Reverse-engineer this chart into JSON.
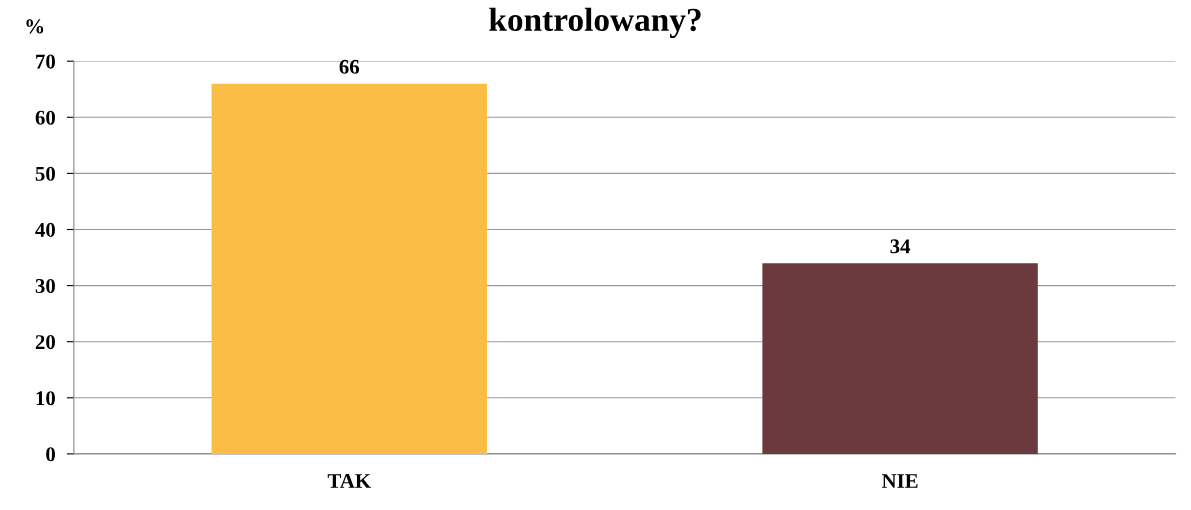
{
  "chart_data": {
    "type": "bar",
    "title": "kontrolowany?",
    "ylabel": "%",
    "categories": [
      "TAK",
      "NIE"
    ],
    "values": [
      66,
      34
    ],
    "colors": [
      "#fbbd45",
      "#6b3a3f"
    ],
    "ylim": [
      0,
      70
    ],
    "yticks": [
      0,
      10,
      20,
      30,
      40,
      50,
      60,
      70
    ],
    "grid": "y",
    "data_labels": true
  }
}
